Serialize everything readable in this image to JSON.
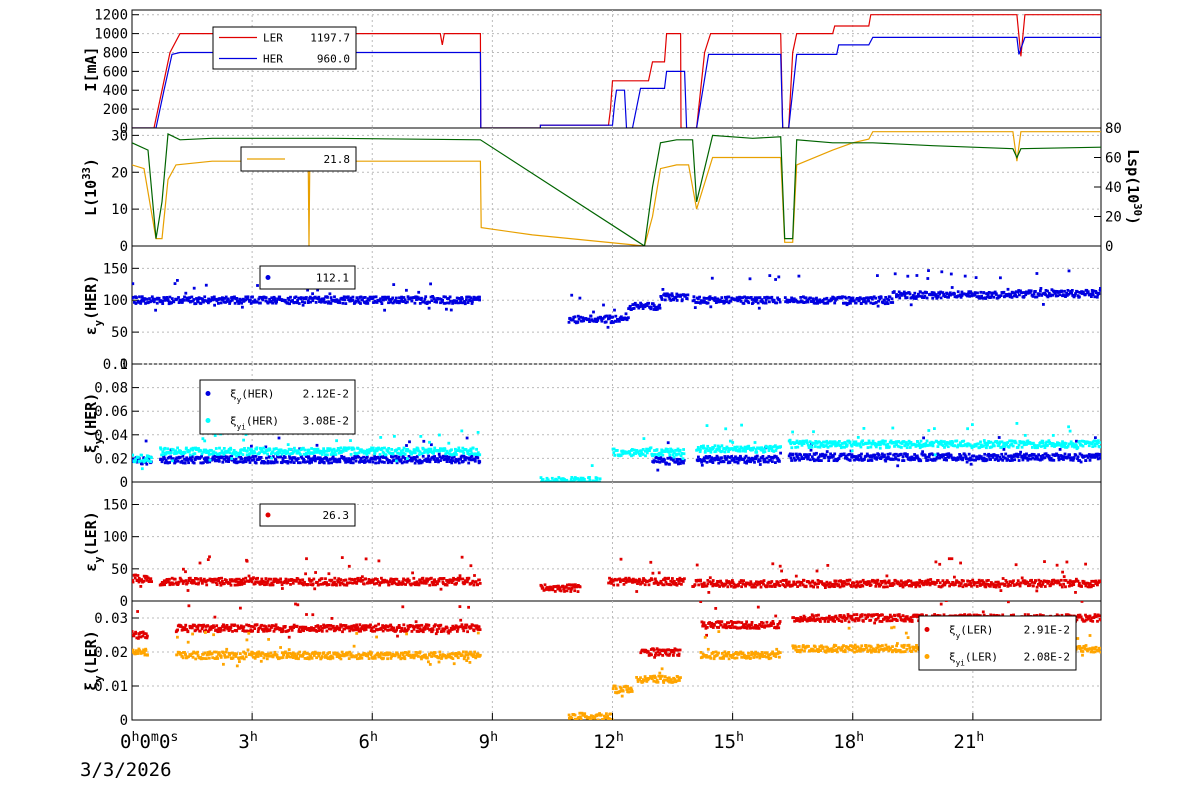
{
  "colors": {
    "LER": "#e00000",
    "HER": "#0000e0",
    "lumi": "#e8a000",
    "lsp": "#006400",
    "her_xi_yi": "#00ffff",
    "ler_xi_yi": "#ffa500",
    "grid": "#bbbbbb"
  },
  "date_label": "3/3/2026",
  "x_axis": {
    "range_hours": [
      0,
      24.2
    ],
    "ticks": [
      {
        "h": 0,
        "main": "0",
        "sup": "h",
        "extra": "0",
        "sup2": "m",
        "extra2": "0",
        "sup3": "s"
      },
      {
        "h": 3,
        "main": "3",
        "sup": "h"
      },
      {
        "h": 6,
        "main": "6",
        "sup": "h"
      },
      {
        "h": 9,
        "main": "9",
        "sup": "h"
      },
      {
        "h": 12,
        "main": "12",
        "sup": "h"
      },
      {
        "h": 15,
        "main": "15",
        "sup": "h"
      },
      {
        "h": 18,
        "main": "18",
        "sup": "h"
      },
      {
        "h": 21,
        "main": "21",
        "sup": "h"
      }
    ]
  },
  "chart_data": [
    {
      "type": "line",
      "ylabel": "I[mA]",
      "ylim": [
        0,
        1250
      ],
      "yticks": [
        "0",
        "200",
        "400",
        "600",
        "800",
        "1000",
        "1200"
      ],
      "ytick_values": [
        0,
        200,
        400,
        600,
        800,
        1000,
        1200
      ],
      "legend": [
        {
          "name": "LER",
          "value": "1197.7",
          "color_key": "LER"
        },
        {
          "name": "HER",
          "value": "960.0",
          "color_key": "HER"
        }
      ],
      "series": [
        {
          "name": "LER",
          "color_key": "LER",
          "points": [
            [
              0,
              0
            ],
            [
              0.3,
              0
            ],
            [
              0.55,
              0
            ],
            [
              0.75,
              400
            ],
            [
              0.95,
              800
            ],
            [
              1.2,
              1000
            ],
            [
              7.7,
              1000
            ],
            [
              7.75,
              880
            ],
            [
              7.8,
              1000
            ],
            [
              8.7,
              1000
            ],
            [
              8.71,
              0
            ],
            [
              10.2,
              0
            ],
            [
              10.2,
              30
            ],
            [
              11.9,
              30
            ],
            [
              11.95,
              200
            ],
            [
              12.0,
              500
            ],
            [
              12.9,
              500
            ],
            [
              13.0,
              700
            ],
            [
              13.3,
              700
            ],
            [
              13.35,
              1000
            ],
            [
              13.7,
              1000
            ],
            [
              13.71,
              0
            ],
            [
              14.1,
              0
            ],
            [
              14.3,
              800
            ],
            [
              14.45,
              1000
            ],
            [
              16.2,
              1000
            ],
            [
              16.25,
              0
            ],
            [
              16.4,
              0
            ],
            [
              16.5,
              800
            ],
            [
              16.6,
              1000
            ],
            [
              17.5,
              1000
            ],
            [
              17.55,
              1080
            ],
            [
              18.4,
              1080
            ],
            [
              18.45,
              1200
            ],
            [
              22.1,
              1200
            ],
            [
              22.2,
              760
            ],
            [
              22.3,
              1200
            ],
            [
              24.2,
              1200
            ]
          ]
        },
        {
          "name": "HER",
          "color_key": "HER",
          "points": [
            [
              0,
              0
            ],
            [
              0.3,
              0
            ],
            [
              0.6,
              0
            ],
            [
              0.8,
              400
            ],
            [
              1.0,
              780
            ],
            [
              1.2,
              800
            ],
            [
              8.7,
              800
            ],
            [
              8.71,
              0
            ],
            [
              10.2,
              0
            ],
            [
              10.2,
              30
            ],
            [
              12.0,
              30
            ],
            [
              12.05,
              250
            ],
            [
              12.1,
              400
            ],
            [
              12.3,
              400
            ],
            [
              12.35,
              0
            ],
            [
              12.5,
              0
            ],
            [
              12.7,
              420
            ],
            [
              13.3,
              420
            ],
            [
              13.35,
              600
            ],
            [
              13.8,
              600
            ],
            [
              13.85,
              0
            ],
            [
              14.1,
              0
            ],
            [
              14.4,
              780
            ],
            [
              16.2,
              780
            ],
            [
              16.25,
              0
            ],
            [
              16.4,
              0
            ],
            [
              16.6,
              780
            ],
            [
              17.6,
              780
            ],
            [
              17.65,
              880
            ],
            [
              18.4,
              880
            ],
            [
              18.5,
              960
            ],
            [
              22.1,
              960
            ],
            [
              22.15,
              780
            ],
            [
              22.3,
              960
            ],
            [
              24.2,
              960
            ]
          ]
        }
      ]
    },
    {
      "type": "line",
      "ylabel": "L(10",
      "ylabel_sup": "33",
      "ylabel_tail": ")",
      "ylim": [
        0,
        32
      ],
      "yticks": [
        "0",
        "10",
        "20",
        "30"
      ],
      "ytick_values": [
        0,
        10,
        20,
        30
      ],
      "y2label": "Lsp(10",
      "y2label_sup": "30",
      "y2label_tail": ")",
      "y2lim": [
        0,
        80
      ],
      "y2ticks": [
        "0",
        "20",
        "40",
        "60",
        "80"
      ],
      "y2tick_values": [
        0,
        20,
        40,
        60,
        80
      ],
      "legend": [
        {
          "name": "",
          "value": "21.8",
          "color_key": "lumi"
        }
      ],
      "series": [
        {
          "name": "",
          "color_key": "lumi",
          "axis": "y1",
          "points": [
            [
              0,
              22
            ],
            [
              0.3,
              21
            ],
            [
              0.6,
              2
            ],
            [
              0.75,
              2
            ],
            [
              0.9,
              18
            ],
            [
              1.1,
              22
            ],
            [
              2.0,
              23
            ],
            [
              3.0,
              23
            ],
            [
              4.4,
              23
            ],
            [
              4.42,
              0
            ],
            [
              4.44,
              23
            ],
            [
              8.7,
              23
            ],
            [
              8.72,
              5
            ],
            [
              10.0,
              3
            ],
            [
              12.8,
              0
            ],
            [
              13.0,
              8
            ],
            [
              13.2,
              21
            ],
            [
              13.6,
              22
            ],
            [
              13.9,
              22
            ],
            [
              14.1,
              10
            ],
            [
              14.5,
              24
            ],
            [
              15.5,
              24
            ],
            [
              16.2,
              24
            ],
            [
              16.3,
              1
            ],
            [
              16.5,
              1
            ],
            [
              16.6,
              22
            ],
            [
              17.5,
              26
            ],
            [
              18.0,
              28
            ],
            [
              18.4,
              29
            ],
            [
              18.5,
              31
            ],
            [
              20.0,
              31
            ],
            [
              22.0,
              31
            ],
            [
              22.1,
              23
            ],
            [
              22.2,
              31
            ],
            [
              24.2,
              31
            ]
          ]
        },
        {
          "name": "",
          "color_key": "lsp",
          "axis": "y2",
          "points": [
            [
              0,
              70
            ],
            [
              0.4,
              65
            ],
            [
              0.6,
              5
            ],
            [
              0.75,
              30
            ],
            [
              0.9,
              76
            ],
            [
              1.2,
              72
            ],
            [
              2.0,
              73
            ],
            [
              3.0,
              73
            ],
            [
              5.0,
              73
            ],
            [
              8.7,
              72
            ],
            [
              12.8,
              0
            ],
            [
              13.0,
              40
            ],
            [
              13.2,
              70
            ],
            [
              13.6,
              72
            ],
            [
              14.0,
              72
            ],
            [
              14.1,
              30
            ],
            [
              14.5,
              75
            ],
            [
              15.5,
              73
            ],
            [
              16.2,
              74
            ],
            [
              16.3,
              5
            ],
            [
              16.5,
              5
            ],
            [
              16.6,
              72
            ],
            [
              17.5,
              70
            ],
            [
              18.4,
              70
            ],
            [
              18.5,
              70
            ],
            [
              20.0,
              68
            ],
            [
              22.0,
              66
            ],
            [
              22.1,
              60
            ],
            [
              22.2,
              66
            ],
            [
              24.2,
              67
            ]
          ]
        }
      ]
    },
    {
      "type": "scatter",
      "ylabel": "ε",
      "ylabel_sub": "y",
      "ylabel_tail": "(HER)",
      "ylim": [
        0,
        185
      ],
      "yticks": [
        "0",
        "50",
        "100",
        "150"
      ],
      "ytick_values": [
        0,
        50,
        100,
        150
      ],
      "legend": [
        {
          "name": "",
          "value": "112.1",
          "color_key": "HER"
        }
      ],
      "series": [
        {
          "name": "",
          "color_key": "HER",
          "segments": [
            [
              0,
              8.7,
              100
            ],
            [
              10.9,
              12.4,
              70
            ],
            [
              12.4,
              13.2,
              90
            ],
            [
              13.2,
              13.9,
              105
            ],
            [
              14.0,
              16.2,
              100
            ],
            [
              16.3,
              19.0,
              100
            ],
            [
              19.0,
              22.0,
              108
            ],
            [
              22.0,
              24.2,
              110
            ]
          ]
        }
      ]
    },
    {
      "type": "scatter",
      "ylabel": "ξ",
      "ylabel_sub": "y",
      "ylabel_tail": "(HER)",
      "ylim": [
        0,
        0.1
      ],
      "yticks": [
        "0",
        "0.02",
        "0.04",
        "0.06",
        "0.08",
        "0.1"
      ],
      "ytick_values": [
        0,
        0.02,
        0.04,
        0.06,
        0.08,
        0.1
      ],
      "legend": [
        {
          "name": "ξ",
          "name_sub": "y",
          "name_tail": "(HER)",
          "value": "2.12E-2",
          "color_key": "HER"
        },
        {
          "name": "ξ",
          "name_sub": "yi",
          "name_tail": "(HER)",
          "value": "3.08E-2",
          "color_key": "her_xi_yi"
        }
      ],
      "series": [
        {
          "name": "ξy(HER)",
          "color_key": "HER",
          "segments": [
            [
              0,
              0.5,
              0.018
            ],
            [
              0.7,
              8.7,
              0.019
            ],
            [
              13.0,
              13.8,
              0.018
            ],
            [
              14.1,
              16.2,
              0.019
            ],
            [
              16.4,
              24.2,
              0.021
            ]
          ]
        },
        {
          "name": "ξyi(HER)",
          "color_key": "her_xi_yi",
          "segments": [
            [
              0,
              0.5,
              0.02
            ],
            [
              0.7,
              8.7,
              0.026
            ],
            [
              10.2,
              11.7,
              0.001
            ],
            [
              12.0,
              13.8,
              0.025
            ],
            [
              14.1,
              16.2,
              0.028
            ],
            [
              16.4,
              24.2,
              0.032
            ]
          ]
        }
      ]
    },
    {
      "type": "scatter",
      "ylabel": "ε",
      "ylabel_sub": "y",
      "ylabel_tail": "(LER)",
      "ylim": [
        0,
        185
      ],
      "yticks": [
        "0",
        "50",
        "100",
        "150"
      ],
      "ytick_values": [
        0,
        50,
        100,
        150
      ],
      "legend": [
        {
          "name": "",
          "value": "26.3",
          "color_key": "LER"
        }
      ],
      "series": [
        {
          "name": "",
          "color_key": "LER",
          "segments": [
            [
              0,
              0.5,
              35
            ],
            [
              0.7,
              8.7,
              30
            ],
            [
              10.2,
              11.2,
              20
            ],
            [
              11.9,
              13.8,
              30
            ],
            [
              14.0,
              24.2,
              27
            ]
          ]
        }
      ]
    },
    {
      "type": "scatter",
      "ylabel": "ξ",
      "ylabel_sub": "y",
      "ylabel_tail": "(LER)",
      "ylim": [
        0,
        0.035
      ],
      "yticks": [
        "0",
        "0.01",
        "0.02",
        "0.03"
      ],
      "ytick_values": [
        0,
        0.01,
        0.02,
        0.03
      ],
      "legend": [
        {
          "name": "ξ",
          "name_sub": "y",
          "name_tail": "(LER)",
          "value": "2.91E-2",
          "color_key": "LER"
        },
        {
          "name": "ξ",
          "name_sub": "yi",
          "name_tail": "(LER)",
          "value": "2.08E-2",
          "color_key": "ler_xi_yi"
        }
      ],
      "series": [
        {
          "name": "ξy(LER)",
          "color_key": "LER",
          "segments": [
            [
              0,
              0.4,
              0.025
            ],
            [
              1.1,
              8.7,
              0.027
            ],
            [
              12.7,
              13.7,
              0.02
            ],
            [
              14.2,
              16.2,
              0.028
            ],
            [
              16.5,
              24.2,
              0.03
            ]
          ]
        },
        {
          "name": "ξyi(LER)",
          "color_key": "ler_xi_yi",
          "segments": [
            [
              0,
              0.4,
              0.02
            ],
            [
              1.1,
              8.7,
              0.019
            ],
            [
              10.9,
              12.0,
              0.001
            ],
            [
              12.0,
              12.5,
              0.009
            ],
            [
              12.6,
              13.7,
              0.012
            ],
            [
              14.2,
              16.2,
              0.019
            ],
            [
              16.5,
              24.2,
              0.021
            ]
          ]
        }
      ]
    }
  ]
}
